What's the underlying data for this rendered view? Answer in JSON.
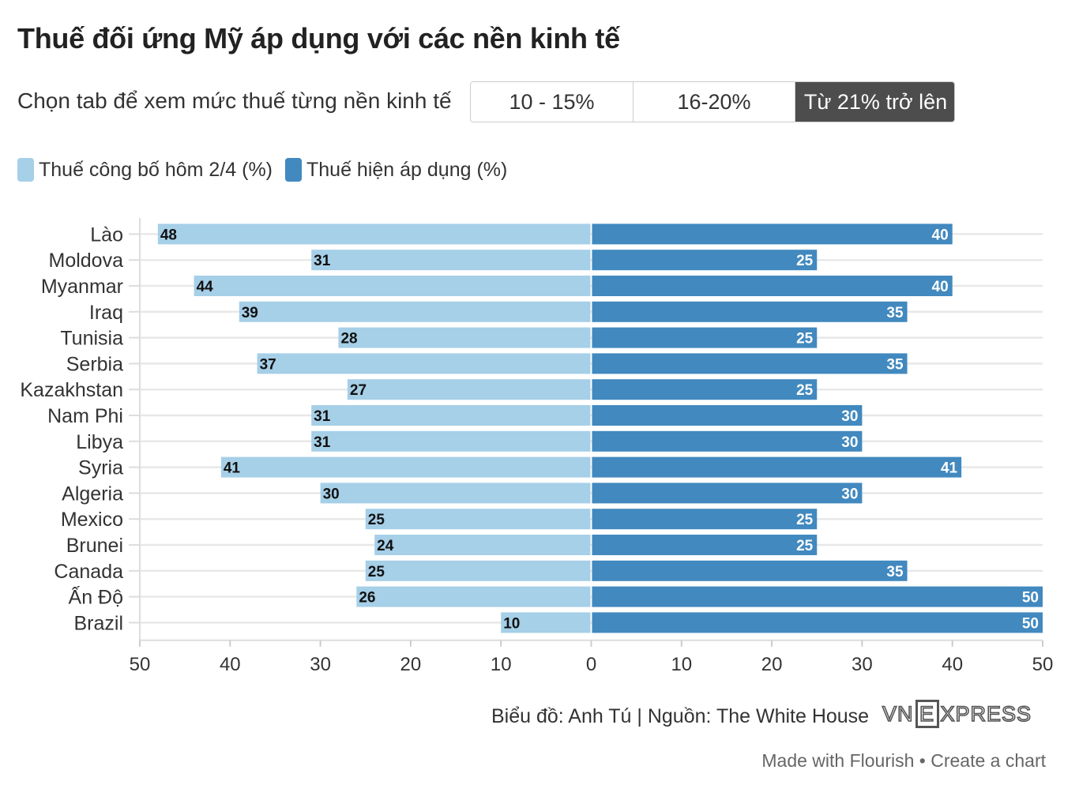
{
  "header": {
    "title": "Thuế đối ứng Mỹ áp dụng với các nền kinh tế",
    "tab_prompt": "Chọn tab để xem mức thuế từng nền kinh tế"
  },
  "tabs": [
    {
      "label": "10 - 15%",
      "active": false
    },
    {
      "label": "16-20%",
      "active": false
    },
    {
      "label": "Từ 21% trở lên",
      "active": true
    }
  ],
  "legend": [
    {
      "label": "Thuế công bố hôm 2/4 (%)",
      "color": "#a6cfe8"
    },
    {
      "label": "Thuế hiện áp dụng (%)",
      "color": "#4189bf"
    }
  ],
  "chart_data": {
    "type": "bar",
    "orientation": "horizontal-diverging",
    "categories": [
      "Lào",
      "Moldova",
      "Myanmar",
      "Iraq",
      "Tunisia",
      "Serbia",
      "Kazakhstan",
      "Nam Phi",
      "Libya",
      "Syria",
      "Algeria",
      "Mexico",
      "Brunei",
      "Canada",
      "Ấn Độ",
      "Brazil"
    ],
    "series": [
      {
        "name": "Thuế công bố hôm 2/4 (%)",
        "side": "left",
        "color": "#a6cfe8",
        "values": [
          48,
          31,
          44,
          39,
          28,
          37,
          27,
          31,
          31,
          41,
          30,
          25,
          24,
          25,
          26,
          10
        ]
      },
      {
        "name": "Thuế hiện áp dụng (%)",
        "side": "right",
        "color": "#4189bf",
        "values": [
          40,
          25,
          40,
          35,
          25,
          35,
          25,
          30,
          30,
          41,
          30,
          25,
          25,
          35,
          50,
          50
        ]
      }
    ],
    "xlim": [
      -50,
      50
    ],
    "x_ticks": [
      -50,
      -40,
      -30,
      -20,
      -10,
      0,
      10,
      20,
      30,
      40,
      50
    ],
    "x_tick_labels": [
      "50",
      "40",
      "30",
      "20",
      "10",
      "0",
      "10",
      "20",
      "30",
      "40",
      "50"
    ],
    "grid": true
  },
  "footer": {
    "source": "Biểu đồ: Anh Tú | Nguồn: The White House",
    "logo": {
      "part1": "VN",
      "part2": "E",
      "part3": "XPRESS"
    },
    "made_with": "Made with Flourish",
    "separator": " • ",
    "create_link": "Create a chart"
  }
}
